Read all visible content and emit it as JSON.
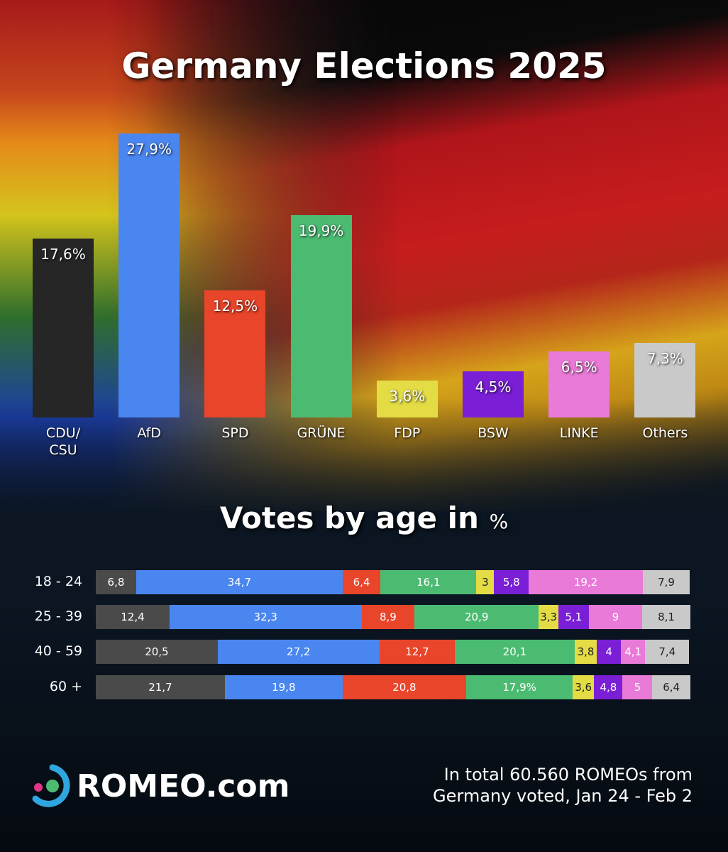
{
  "chart_data": [
    {
      "type": "bar",
      "title": "Germany Elections 2025",
      "categories": [
        "CDU/\nCSU",
        "AfD",
        "SPD",
        "GRÜNE",
        "FDP",
        "BSW",
        "LINKE",
        "Others"
      ],
      "values": [
        17.6,
        27.9,
        12.5,
        19.9,
        3.6,
        4.5,
        6.5,
        7.3
      ],
      "value_labels": [
        "17,6%",
        "27,9%",
        "12,5%",
        "19,9%",
        "3,6%",
        "4,5%",
        "6,5%",
        "7,3%"
      ],
      "colors": [
        "#262626",
        "#4a86f0",
        "#e8452a",
        "#4cbb72",
        "#e3dc45",
        "#7a1fd6",
        "#e97ad8",
        "#c9c9c9"
      ]
    },
    {
      "type": "stacked_bar_horizontal",
      "title": "Votes by age in",
      "title_unit": "%",
      "categories": [
        "18 - 24",
        "25 - 39",
        "40 - 59",
        "60 +"
      ],
      "series": [
        {
          "color": "#4a4a4a",
          "values": [
            6.8,
            12.4,
            20.5,
            21.7
          ],
          "value_labels": [
            "6,8",
            "12,4",
            "20,5",
            "21,7"
          ]
        },
        {
          "color": "#4a86f0",
          "values": [
            34.7,
            32.3,
            27.2,
            19.8
          ],
          "value_labels": [
            "34,7",
            "32,3",
            "27,2",
            "19,8"
          ]
        },
        {
          "color": "#e8452a",
          "values": [
            6.4,
            8.9,
            12.7,
            20.8
          ],
          "value_labels": [
            "6,4",
            "8,9",
            "12,7",
            "20,8"
          ]
        },
        {
          "color": "#4cbb72",
          "values": [
            16.1,
            20.9,
            20.1,
            17.9
          ],
          "value_labels": [
            "16,1",
            "20,9",
            "20,1",
            "17,9%"
          ]
        },
        {
          "color": "#e3dc45",
          "values": [
            3,
            3.3,
            3.8,
            3.6
          ],
          "value_labels": [
            "3",
            "3,3",
            "3,8",
            "3,6"
          ]
        },
        {
          "color": "#7a1fd6",
          "values": [
            5.8,
            5.1,
            4,
            4.8
          ],
          "value_labels": [
            "5,8",
            "5,1",
            "4",
            "4,8"
          ]
        },
        {
          "color": "#e97ad8",
          "values": [
            19.2,
            9,
            4.1,
            5
          ],
          "value_labels": [
            "19,2",
            "9",
            "4,1",
            "5"
          ]
        },
        {
          "color": "#c9c9c9",
          "values": [
            7.9,
            8.1,
            7.4,
            6.4
          ],
          "value_labels": [
            "7,9",
            "8,1",
            "7,4",
            "6,4"
          ]
        }
      ]
    }
  ],
  "footer": {
    "brand": "ROMEO.com",
    "note": "In total 60.560 ROMEOs from\nGermany voted, Jan 24 - Feb 2"
  }
}
